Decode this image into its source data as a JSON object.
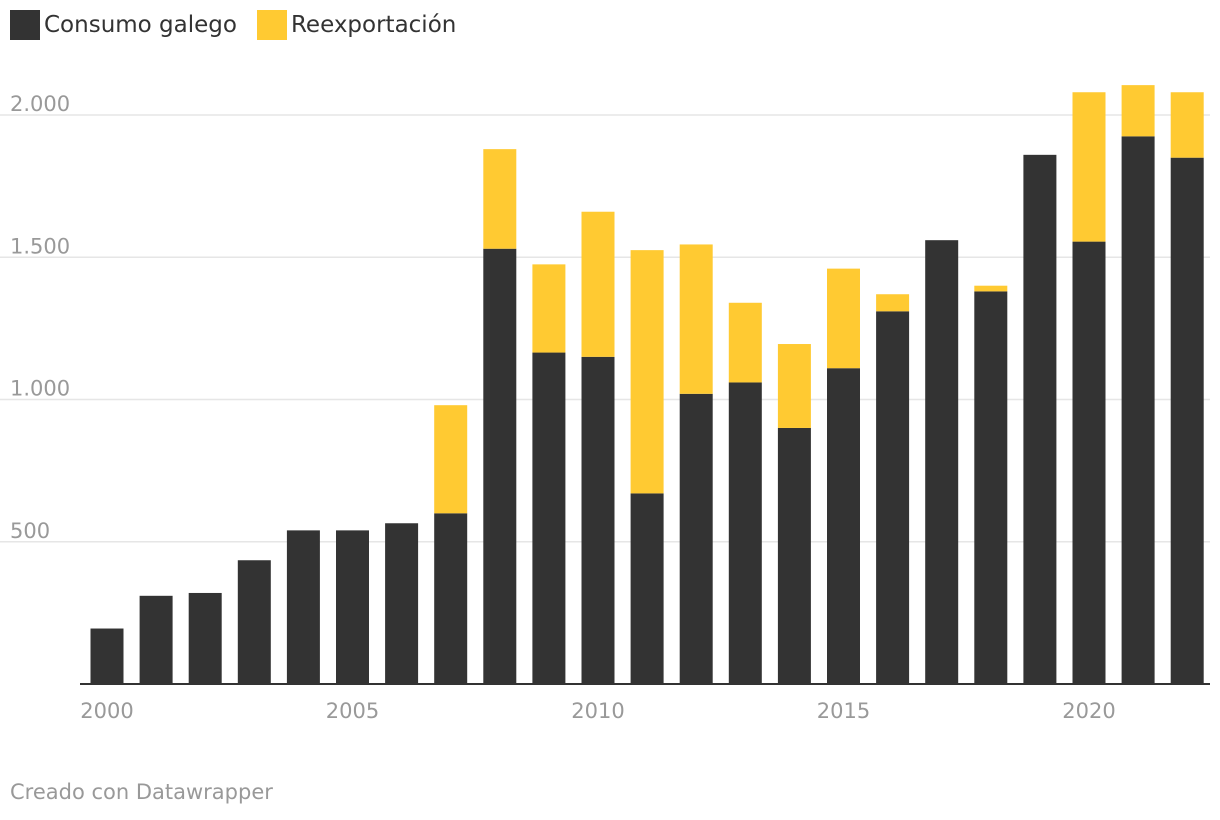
{
  "legend": {
    "items": [
      {
        "label": "Consumo galego",
        "color": "#333333"
      },
      {
        "label": "Reexportación",
        "color": "#ffca32"
      }
    ]
  },
  "footer": {
    "credit": "Creado con Datawrapper"
  },
  "chart_data": {
    "type": "bar",
    "stacked": true,
    "title": "",
    "xlabel": "",
    "ylabel": "",
    "ylim": [
      0,
      2100
    ],
    "yticks": [
      500,
      1000,
      1500,
      2000
    ],
    "ytick_labels": [
      "500",
      "1.000",
      "1.500",
      "2.000"
    ],
    "xticks": [
      2000,
      2005,
      2010,
      2015,
      2020
    ],
    "xtick_labels": [
      "2000",
      "2005",
      "2010",
      "2015",
      "2020"
    ],
    "categories": [
      2000,
      2001,
      2002,
      2003,
      2004,
      2005,
      2006,
      2007,
      2008,
      2009,
      2010,
      2011,
      2012,
      2013,
      2014,
      2015,
      2016,
      2017,
      2018,
      2019,
      2020,
      2021,
      2022
    ],
    "series": [
      {
        "name": "Consumo galego",
        "color": "#333333",
        "values": [
          195,
          310,
          320,
          435,
          540,
          540,
          565,
          600,
          1530,
          1165,
          1150,
          670,
          1020,
          1060,
          900,
          1110,
          1310,
          1560,
          1380,
          1860,
          1555,
          1925,
          1850
        ]
      },
      {
        "name": "Reexportación",
        "color": "#ffca32",
        "values": [
          0,
          0,
          0,
          0,
          0,
          0,
          0,
          380,
          350,
          310,
          510,
          855,
          525,
          280,
          295,
          350,
          60,
          0,
          20,
          0,
          525,
          180,
          230
        ]
      }
    ],
    "legend_position": "top-left",
    "grid": true
  }
}
